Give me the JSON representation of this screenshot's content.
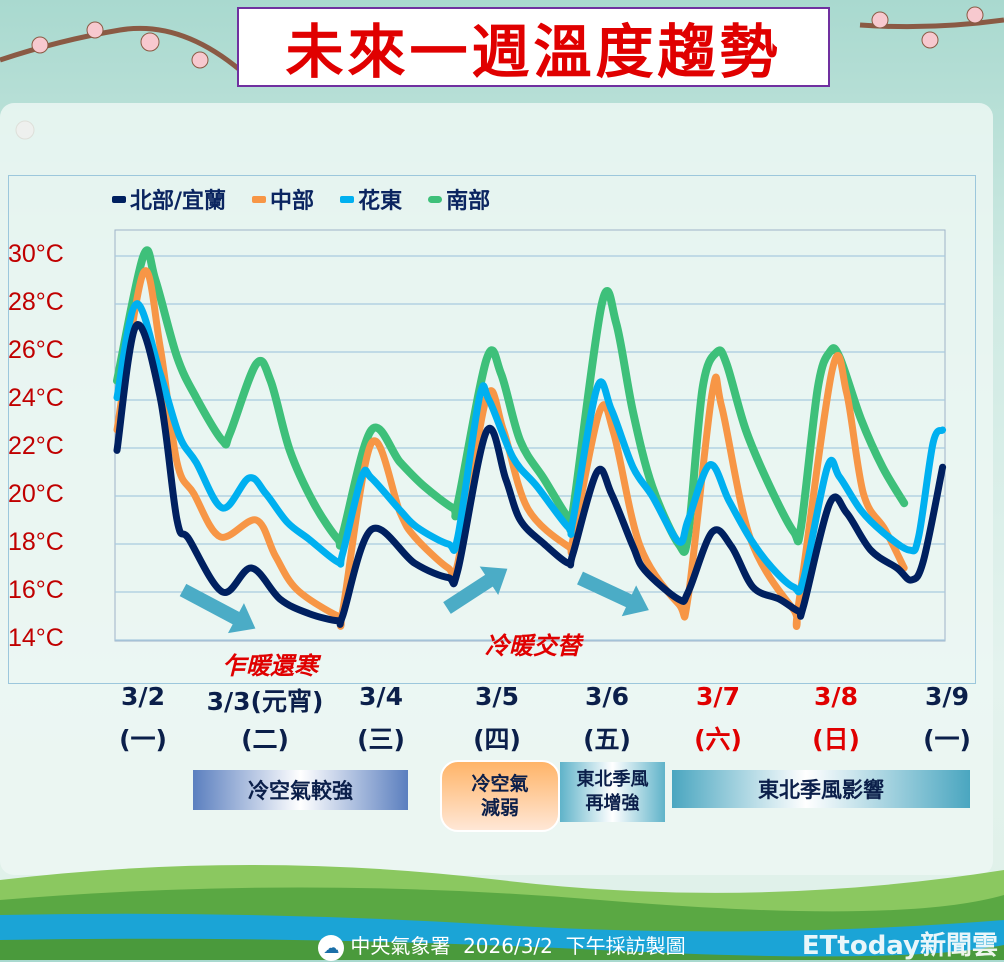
{
  "title": "未來一週溫度趨勢",
  "colors": {
    "north": "#002060",
    "central": "#f79646",
    "east": "#00b0f0",
    "south": "#3ec07a",
    "title": "#e00000",
    "axis_label": "#c00000"
  },
  "annotations": [
    "乍暖還寒",
    "冷暖交替"
  ],
  "phases": [
    {
      "label": "冷空氣較強"
    },
    {
      "label": "冷空氣\n減弱"
    },
    {
      "label": "東北季風\n再增強"
    },
    {
      "label": "東北季風影響"
    }
  ],
  "footer": {
    "agency": "中央氣象署",
    "text": "中央氣象署  2026/3/2  下午採訪製圖",
    "watermark": "ETtoday新聞雲"
  },
  "chart_data": {
    "type": "line",
    "title": "未來一週溫度趨勢",
    "xlabel": "",
    "ylabel": "",
    "x_unit": "hours since start of 3/2",
    "xlim": [
      0,
      172
    ],
    "ylim": [
      14,
      31
    ],
    "yticks": [
      30,
      28,
      26,
      24,
      22,
      20,
      18,
      16,
      14
    ],
    "ytick_labels": [
      "30°C",
      "28°C",
      "26°C",
      "24°C",
      "22°C",
      "20°C",
      "18°C",
      "16°C",
      "14°C"
    ],
    "xtick_dates": [
      "3/2",
      "3/3(元宵)",
      "3/4",
      "3/5",
      "3/6",
      "3/7",
      "3/8",
      "3/9"
    ],
    "xtick_weekdays": [
      "(一)",
      "(二)",
      "(三)",
      "(四)",
      "(五)",
      "(六)",
      "(日)",
      "(一)"
    ],
    "xtick_weekend": [
      false,
      false,
      false,
      false,
      false,
      true,
      true,
      false
    ],
    "grid": true,
    "legend_position": "top",
    "series": [
      {
        "name": "南部",
        "key": "south",
        "points": [
          [
            0,
            24.8
          ],
          [
            5.5,
            30.0
          ],
          [
            8,
            29.0
          ],
          [
            12.5,
            25.8
          ],
          [
            16.5,
            24.1
          ],
          [
            22,
            22.3
          ],
          [
            23.5,
            22.6
          ],
          [
            29,
            25.5
          ],
          [
            32,
            24.8
          ],
          [
            36,
            21.9
          ],
          [
            41,
            19.7
          ],
          [
            46,
            18.2
          ],
          [
            47,
            18.4
          ],
          [
            53,
            22.75
          ],
          [
            59,
            21.4
          ],
          [
            64,
            20.4
          ],
          [
            70,
            19.5
          ],
          [
            71,
            19.7
          ],
          [
            77,
            25.7
          ],
          [
            80,
            25.1
          ],
          [
            84,
            22.3
          ],
          [
            89,
            20.7
          ],
          [
            94,
            19.1
          ],
          [
            95,
            19.4
          ],
          [
            101,
            28.0
          ],
          [
            104,
            27.2
          ],
          [
            107.5,
            23.5
          ],
          [
            111.5,
            20.4
          ],
          [
            117,
            18.0
          ],
          [
            119,
            18.4
          ],
          [
            122,
            24.5
          ],
          [
            125,
            26.0
          ],
          [
            127,
            25.5
          ],
          [
            131,
            22.75
          ],
          [
            136,
            20.4
          ],
          [
            141,
            18.5
          ],
          [
            142.5,
            18.7
          ],
          [
            146,
            24.5
          ],
          [
            148.5,
            26.0
          ],
          [
            150.5,
            25.8
          ],
          [
            155,
            23.2
          ],
          [
            159.5,
            21.2
          ],
          [
            164,
            19.7
          ]
        ]
      },
      {
        "name": "中部",
        "key": "central",
        "points": [
          [
            0,
            22.75
          ],
          [
            5.5,
            29.3
          ],
          [
            9,
            26.2
          ],
          [
            12.5,
            21.4
          ],
          [
            16,
            20.1
          ],
          [
            21.5,
            18.3
          ],
          [
            29,
            19.0
          ],
          [
            33,
            17.5
          ],
          [
            37.5,
            16.1
          ],
          [
            46,
            15.0
          ],
          [
            47,
            15.2
          ],
          [
            53,
            22.2
          ],
          [
            59,
            19.3
          ],
          [
            62,
            18.3
          ],
          [
            69,
            17.0
          ],
          [
            71,
            17.2
          ],
          [
            77,
            24.1
          ],
          [
            80.5,
            22.75
          ],
          [
            85.5,
            19.5
          ],
          [
            94,
            17.9
          ],
          [
            95,
            18.2
          ],
          [
            100.5,
            23.5
          ],
          [
            103.5,
            22.6
          ],
          [
            109,
            17.9
          ],
          [
            117,
            15.5
          ],
          [
            119,
            15.8
          ],
          [
            124,
            24.3
          ],
          [
            126,
            23.7
          ],
          [
            132,
            18.2
          ],
          [
            141,
            15.25
          ],
          [
            142,
            15.5
          ],
          [
            149,
            25.25
          ],
          [
            152,
            24.3
          ],
          [
            155.5,
            20.1
          ],
          [
            160,
            18.6
          ],
          [
            164,
            17.0
          ]
        ]
      },
      {
        "name": "花東",
        "key": "east",
        "points": [
          [
            0,
            24.1
          ],
          [
            4,
            28.0
          ],
          [
            9,
            25.1
          ],
          [
            13,
            22.5
          ],
          [
            16.5,
            21.4
          ],
          [
            22,
            19.5
          ],
          [
            27.5,
            20.75
          ],
          [
            31,
            20.1
          ],
          [
            35.5,
            18.9
          ],
          [
            40,
            18.2
          ],
          [
            46,
            17.25
          ],
          [
            47,
            17.6
          ],
          [
            51,
            20.8
          ],
          [
            53,
            20.75
          ],
          [
            59,
            19.4
          ],
          [
            62.5,
            18.7
          ],
          [
            69,
            18.0
          ],
          [
            71,
            18.3
          ],
          [
            75.5,
            24.1
          ],
          [
            77.5,
            24.0
          ],
          [
            82.5,
            21.6
          ],
          [
            87.5,
            20.4
          ],
          [
            94,
            18.7
          ],
          [
            95,
            19.0
          ],
          [
            100,
            24.5
          ],
          [
            103,
            23.6
          ],
          [
            107.5,
            21.2
          ],
          [
            111.5,
            20.0
          ],
          [
            117,
            18.1
          ],
          [
            119,
            19.0
          ],
          [
            123.5,
            21.3
          ],
          [
            127.5,
            19.8
          ],
          [
            132,
            18.2
          ],
          [
            136.5,
            17.0
          ],
          [
            141,
            16.2
          ],
          [
            143,
            16.5
          ],
          [
            148,
            21.2
          ],
          [
            150.5,
            20.8
          ],
          [
            155,
            19.4
          ],
          [
            159.5,
            18.5
          ],
          [
            165,
            17.75
          ],
          [
            167,
            18.3
          ],
          [
            170,
            22.2
          ],
          [
            172,
            22.75
          ]
        ]
      },
      {
        "name": "北部/宜蘭",
        "key": "north",
        "points": [
          [
            0,
            21.9
          ],
          [
            4,
            27.1
          ],
          [
            9,
            24.1
          ],
          [
            12.5,
            19.0
          ],
          [
            15,
            18.2
          ],
          [
            22,
            16.0
          ],
          [
            28,
            17.0
          ],
          [
            34,
            15.7
          ],
          [
            40,
            15.1
          ],
          [
            46,
            14.8
          ],
          [
            47,
            15.0
          ],
          [
            53,
            18.6
          ],
          [
            62,
            17.2
          ],
          [
            69,
            16.6
          ],
          [
            71,
            16.9
          ],
          [
            77,
            22.7
          ],
          [
            81,
            20.7
          ],
          [
            84,
            19.0
          ],
          [
            89,
            18.0
          ],
          [
            94,
            17.2
          ],
          [
            95,
            17.6
          ],
          [
            100,
            21.0
          ],
          [
            103,
            20.1
          ],
          [
            107.5,
            17.9
          ],
          [
            110,
            16.9
          ],
          [
            117,
            15.7
          ],
          [
            119,
            16.0
          ],
          [
            124,
            18.5
          ],
          [
            128,
            17.9
          ],
          [
            132.5,
            16.2
          ],
          [
            138,
            15.7
          ],
          [
            142,
            15.2
          ],
          [
            143,
            15.4
          ],
          [
            148.5,
            19.7
          ],
          [
            152,
            19.3
          ],
          [
            157,
            17.75
          ],
          [
            162.5,
            17.0
          ],
          [
            165.5,
            16.5
          ],
          [
            168,
            17.3
          ],
          [
            172,
            21.2
          ]
        ]
      }
    ],
    "legend": [
      "北部/宜蘭",
      "中部",
      "花東",
      "南部"
    ]
  }
}
